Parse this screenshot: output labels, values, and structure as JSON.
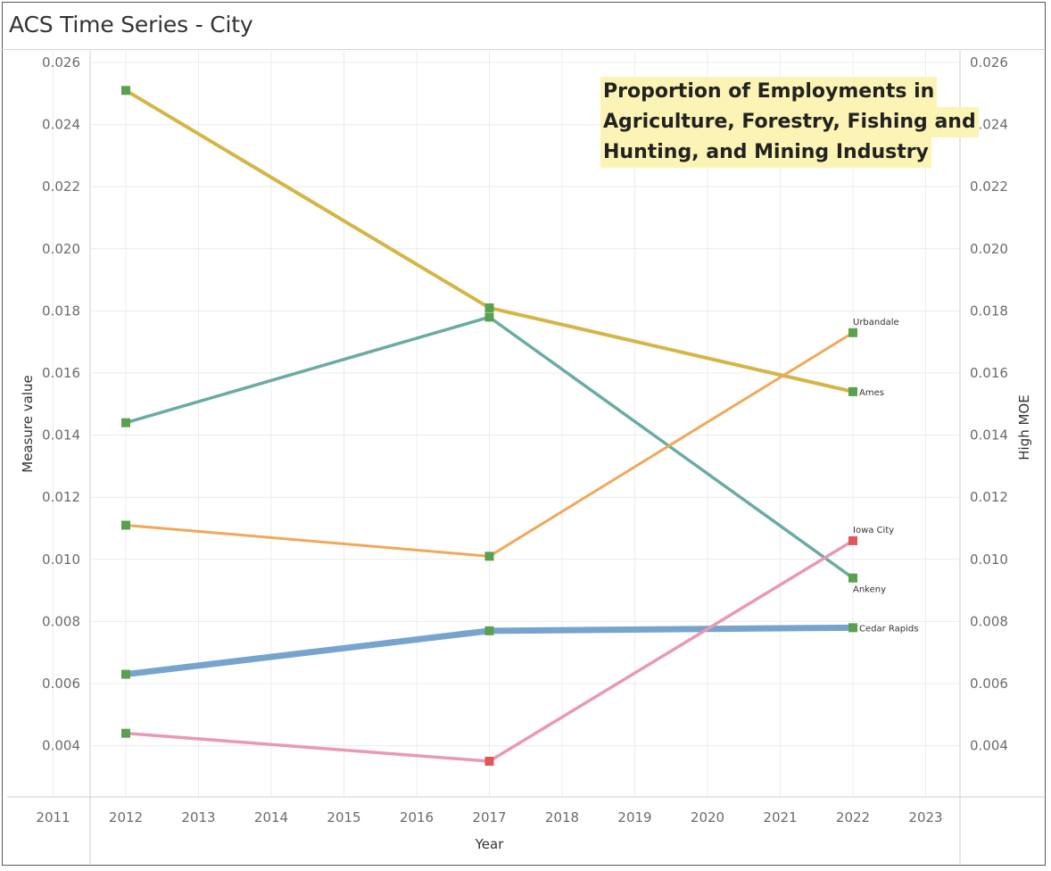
{
  "title": "ACS Time Series - City",
  "annotation_lines": [
    "Proportion of Employments in",
    "Agriculture, Forestry, Fishing and",
    "Hunting, and Mining Industry"
  ],
  "chart_data": {
    "type": "line",
    "title": "ACS Time Series - City",
    "xlabel": "Year",
    "ylabel": "Measure value",
    "ylabel_right": "High MOE",
    "xlim": [
      2011,
      2023
    ],
    "ylim": [
      0.0028,
      0.0262
    ],
    "x_ticks": [
      2011,
      2012,
      2013,
      2014,
      2015,
      2016,
      2017,
      2018,
      2019,
      2020,
      2021,
      2022,
      2023
    ],
    "y_ticks": [
      0.004,
      0.006,
      0.008,
      0.01,
      0.012,
      0.014,
      0.016,
      0.018,
      0.02,
      0.022,
      0.024,
      0.026
    ],
    "y_tick_labels": [
      "0.004",
      "0.006",
      "0.008",
      "0.010",
      "0.012",
      "0.014",
      "0.016",
      "0.018",
      "0.020",
      "0.022",
      "0.024",
      "0.026"
    ],
    "grid": true,
    "series": [
      {
        "name": "Ames",
        "color": "#d4b545",
        "width": 4,
        "x": [
          2012,
          2017,
          2022
        ],
        "values": [
          0.0251,
          0.0181,
          0.0154
        ],
        "marker_colors": [
          "#59a14f",
          "#59a14f",
          "#59a14f"
        ]
      },
      {
        "name": "Ankeny",
        "color": "#6aaba4",
        "width": 3.5,
        "x": [
          2012,
          2017,
          2022
        ],
        "values": [
          0.0144,
          0.0178,
          0.0094
        ],
        "marker_colors": [
          "#59a14f",
          "#59a14f",
          "#59a14f"
        ]
      },
      {
        "name": "Urbandale",
        "color": "#f0a85a",
        "width": 3,
        "x": [
          2012,
          2017,
          2022
        ],
        "values": [
          0.0111,
          0.0101,
          0.0173
        ],
        "marker_colors": [
          "#59a14f",
          "#59a14f",
          "#59a14f"
        ]
      },
      {
        "name": "Cedar Rapids",
        "color": "#76a4cf",
        "width": 7,
        "x": [
          2012,
          2017,
          2022
        ],
        "values": [
          0.0063,
          0.0077,
          0.0078
        ],
        "marker_colors": [
          "#59a14f",
          "#59a14f",
          "#59a14f"
        ]
      },
      {
        "name": "Iowa City",
        "color": "#e899b4",
        "width": 3.5,
        "x": [
          2012,
          2017,
          2022
        ],
        "values": [
          0.0044,
          0.0035,
          0.0106
        ],
        "marker_colors": [
          "#59a14f",
          "#e15759",
          "#e15759"
        ]
      }
    ],
    "end_labels": [
      {
        "text": "Urbandale",
        "series": "Urbandale",
        "placement": "above"
      },
      {
        "text": "Ames",
        "series": "Ames",
        "placement": "right"
      },
      {
        "text": "Iowa City",
        "series": "Iowa City",
        "placement": "above"
      },
      {
        "text": "Ankeny",
        "series": "Ankeny",
        "placement": "below"
      },
      {
        "text": "Cedar Rapids",
        "series": "Cedar Rapids",
        "placement": "right"
      }
    ]
  }
}
